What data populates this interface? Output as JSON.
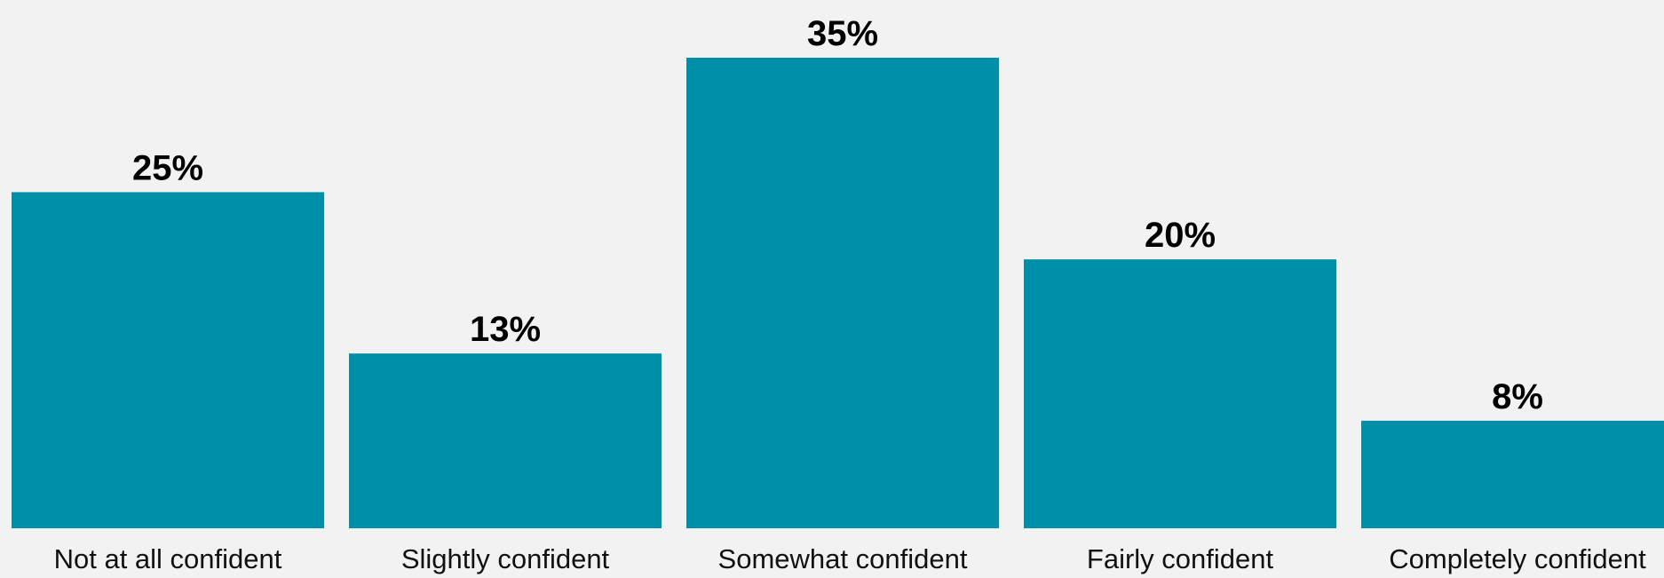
{
  "chart_data": {
    "type": "bar",
    "categories": [
      "Not at all confident",
      "Slightly confident",
      "Somewhat confident",
      "Fairly confident",
      "Completely confident"
    ],
    "values": [
      25,
      13,
      35,
      20,
      8
    ],
    "value_labels": [
      "25%",
      "13%",
      "35%",
      "20%",
      "8%"
    ],
    "title": "",
    "xlabel": "",
    "ylabel": "",
    "ylim": [
      0,
      35
    ],
    "grid": false,
    "legend": "none",
    "bar_color": "#008fa9",
    "background_color": "#f2f2f2"
  }
}
